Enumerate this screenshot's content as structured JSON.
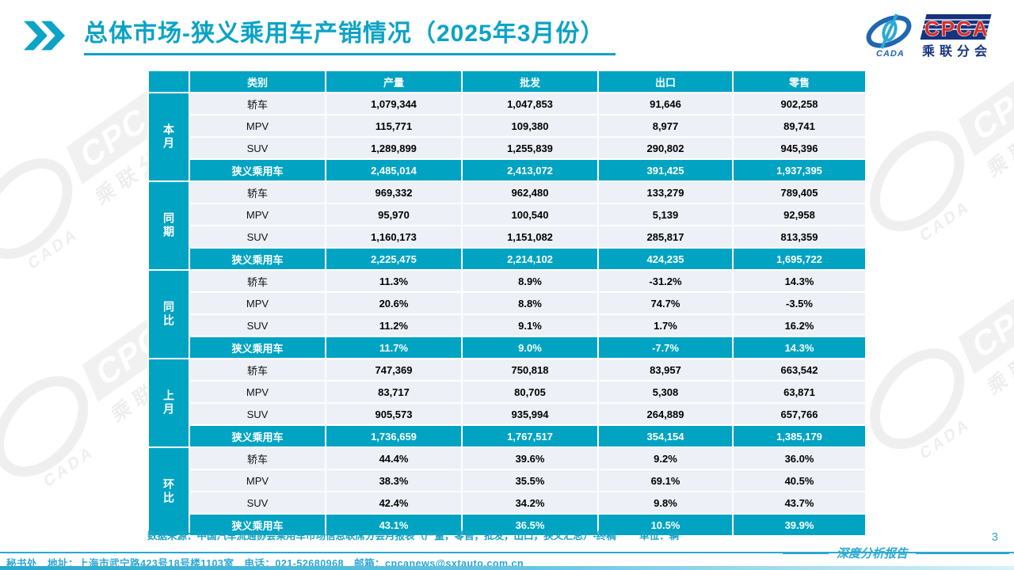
{
  "page": {
    "title": "总体市场-狭义乘用车产销情况（2025年3月份）",
    "page_number": "3",
    "report_label": "深度分析报告"
  },
  "colors": {
    "accent_teal": "#00a3c2",
    "title_teal": "#0ba3c6",
    "footer_cyan": "#2aa7d4",
    "row_light": "#edf1f7",
    "logo_navy": "#16337e",
    "logo_red": "#d92c25"
  },
  "logo": {
    "cpca": "CPCA",
    "sub": "乘联分会",
    "cada": "CADA"
  },
  "watermark": {
    "cpca": "CPCA",
    "sub": "乘联分会",
    "cada": "CADA"
  },
  "table": {
    "columns": [
      "类别",
      "产量",
      "批发",
      "出口",
      "零售"
    ],
    "groups": [
      {
        "label": "本月",
        "rows": [
          {
            "category": "轿车",
            "values": [
              "1,079,344",
              "1,047,853",
              "91,646",
              "902,258"
            ],
            "summary": false
          },
          {
            "category": "MPV",
            "values": [
              "115,771",
              "109,380",
              "8,977",
              "89,741"
            ],
            "summary": false
          },
          {
            "category": "SUV",
            "values": [
              "1,289,899",
              "1,255,839",
              "290,802",
              "945,396"
            ],
            "summary": false
          },
          {
            "category": "狭义乘用车",
            "values": [
              "2,485,014",
              "2,413,072",
              "391,425",
              "1,937,395"
            ],
            "summary": true
          }
        ]
      },
      {
        "label": "同期",
        "rows": [
          {
            "category": "轿车",
            "values": [
              "969,332",
              "962,480",
              "133,279",
              "789,405"
            ],
            "summary": false
          },
          {
            "category": "MPV",
            "values": [
              "95,970",
              "100,540",
              "5,139",
              "92,958"
            ],
            "summary": false
          },
          {
            "category": "SUV",
            "values": [
              "1,160,173",
              "1,151,082",
              "285,817",
              "813,359"
            ],
            "summary": false
          },
          {
            "category": "狭义乘用车",
            "values": [
              "2,225,475",
              "2,214,102",
              "424,235",
              "1,695,722"
            ],
            "summary": true
          }
        ]
      },
      {
        "label": "同比",
        "rows": [
          {
            "category": "轿车",
            "values": [
              "11.3%",
              "8.9%",
              "-31.2%",
              "14.3%"
            ],
            "summary": false
          },
          {
            "category": "MPV",
            "values": [
              "20.6%",
              "8.8%",
              "74.7%",
              "-3.5%"
            ],
            "summary": false
          },
          {
            "category": "SUV",
            "values": [
              "11.2%",
              "9.1%",
              "1.7%",
              "16.2%"
            ],
            "summary": false
          },
          {
            "category": "狭义乘用车",
            "values": [
              "11.7%",
              "9.0%",
              "-7.7%",
              "14.3%"
            ],
            "summary": true
          }
        ]
      },
      {
        "label": "上月",
        "rows": [
          {
            "category": "轿车",
            "values": [
              "747,369",
              "750,818",
              "83,957",
              "663,542"
            ],
            "summary": false
          },
          {
            "category": "MPV",
            "values": [
              "83,717",
              "80,705",
              "5,308",
              "63,871"
            ],
            "summary": false
          },
          {
            "category": "SUV",
            "values": [
              "905,573",
              "935,994",
              "264,889",
              "657,766"
            ],
            "summary": false
          },
          {
            "category": "狭义乘用车",
            "values": [
              "1,736,659",
              "1,767,517",
              "354,154",
              "1,385,179"
            ],
            "summary": true
          }
        ]
      },
      {
        "label": "环比",
        "rows": [
          {
            "category": "轿车",
            "values": [
              "44.4%",
              "39.6%",
              "9.2%",
              "36.0%"
            ],
            "summary": false
          },
          {
            "category": "MPV",
            "values": [
              "38.3%",
              "35.5%",
              "69.1%",
              "40.5%"
            ],
            "summary": false
          },
          {
            "category": "SUV",
            "values": [
              "42.4%",
              "34.2%",
              "9.8%",
              "43.7%"
            ],
            "summary": false
          },
          {
            "category": "狭义乘用车",
            "values": [
              "43.1%",
              "36.5%",
              "10.5%",
              "39.9%"
            ],
            "summary": true
          }
        ]
      }
    ]
  },
  "source_note": {
    "text": "数据来源：中国汽车流通协会乘用车市场信息联席分会月报表（产量，零售，批发，出口，狭义汇总）-终稿",
    "unit": "单位：辆"
  },
  "footer": {
    "text": "秘书处　地址：上海市武宁路423号18号楼1103室　电话：021-52680968　邮箱：cpcanews@sxtauto.com.cn"
  }
}
